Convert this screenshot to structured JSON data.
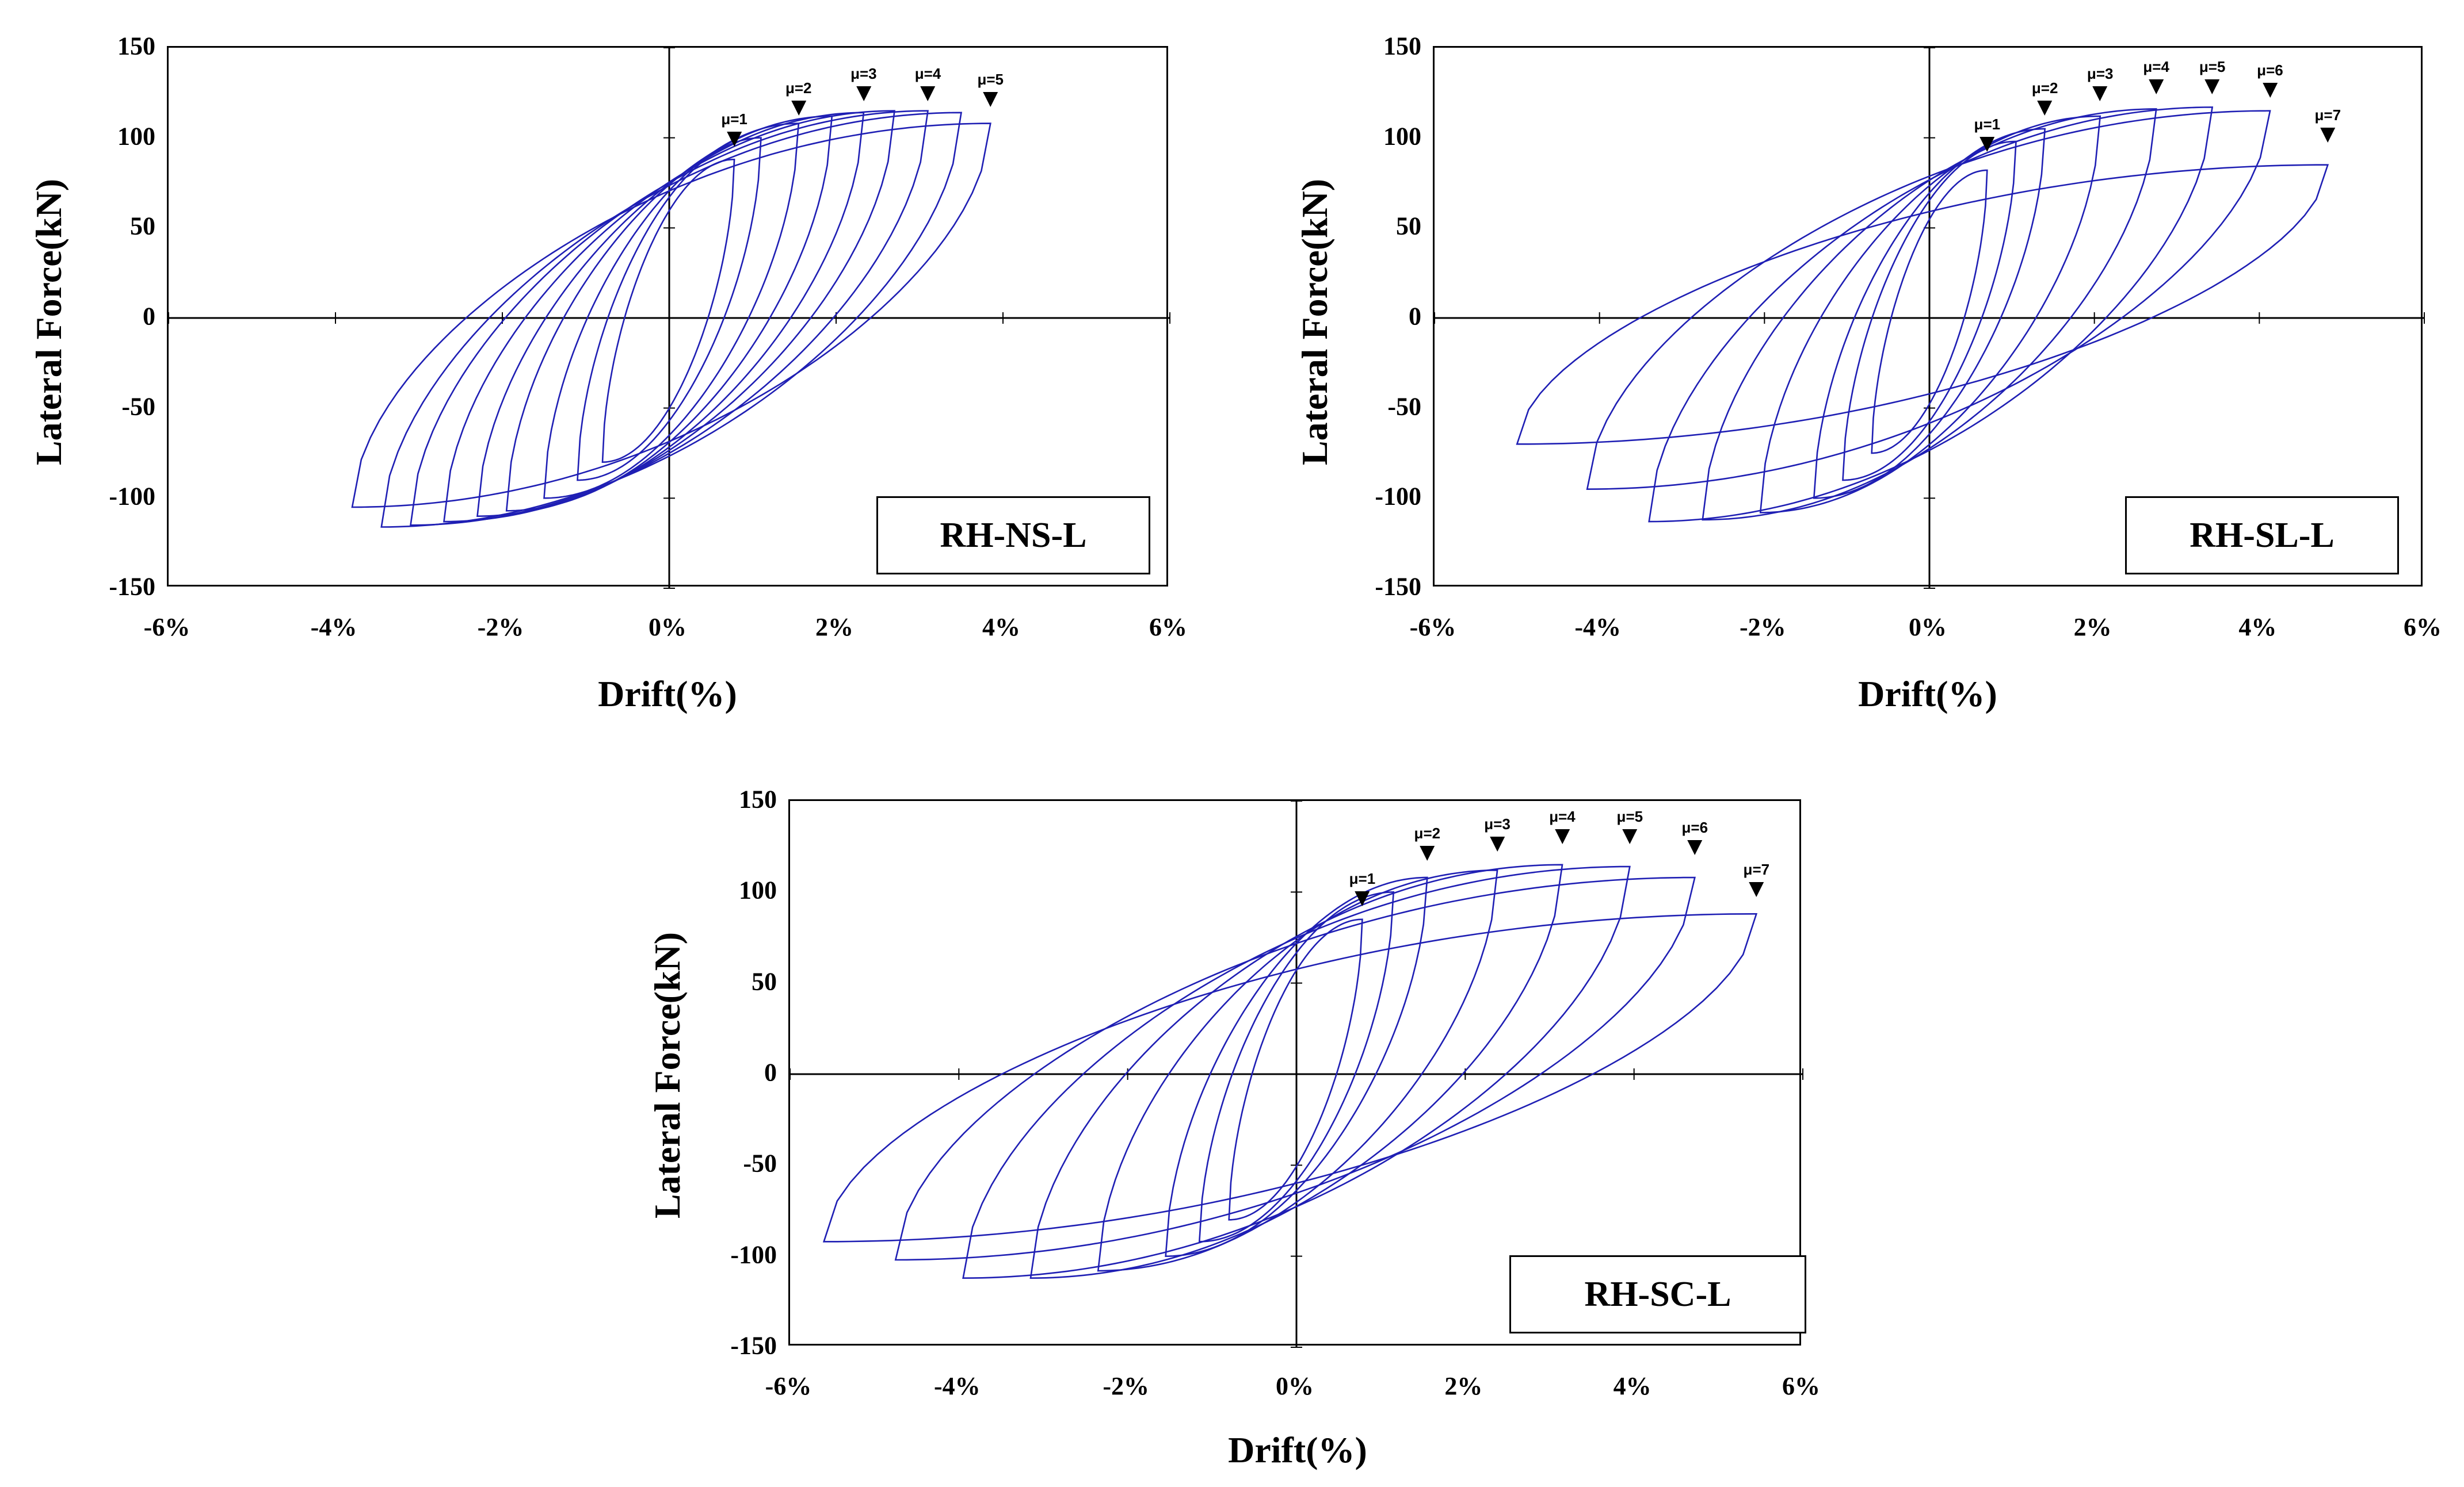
{
  "figure": {
    "line_color": "#1f1fb4"
  },
  "chart_data": [
    {
      "type": "line",
      "specimen": "RH-NS-L",
      "xlabel": "Drift(%)",
      "ylabel": "Lateral Force(kN)",
      "xlim": [
        -6,
        6
      ],
      "ylim": [
        -150,
        150
      ],
      "xticks": [
        "-6%",
        "-4%",
        "-2%",
        "0%",
        "2%",
        "4%",
        "6%"
      ],
      "yticks": [
        "150",
        "100",
        "50",
        "0",
        "-50",
        "-100",
        "-150"
      ],
      "ductility_markers": [
        {
          "label": "μ=1",
          "drift": 0.78,
          "force": 93
        },
        {
          "label": "μ=2",
          "drift": 1.55,
          "force": 110
        },
        {
          "label": "μ=3",
          "drift": 2.33,
          "force": 118
        },
        {
          "label": "μ=4",
          "drift": 3.1,
          "force": 118
        },
        {
          "label": "μ=5",
          "drift": 3.85,
          "force": 115
        }
      ],
      "series": [
        {
          "name": "cycle 1",
          "peak_pos": [
            0.78,
            88
          ],
          "peak_neg": [
            -0.8,
            -80
          ]
        },
        {
          "name": "cycle 2",
          "peak_pos": [
            1.1,
            100
          ],
          "peak_neg": [
            -1.1,
            -90
          ]
        },
        {
          "name": "cycle 3",
          "peak_pos": [
            1.55,
            108
          ],
          "peak_neg": [
            -1.5,
            -100
          ]
        },
        {
          "name": "cycle 4",
          "peak_pos": [
            1.95,
            112
          ],
          "peak_neg": [
            -1.95,
            -107
          ]
        },
        {
          "name": "cycle 5",
          "peak_pos": [
            2.33,
            114
          ],
          "peak_neg": [
            -2.3,
            -110
          ]
        },
        {
          "name": "cycle 6",
          "peak_pos": [
            2.7,
            115
          ],
          "peak_neg": [
            -2.7,
            -113
          ]
        },
        {
          "name": "cycle 7",
          "peak_pos": [
            3.1,
            115
          ],
          "peak_neg": [
            -3.1,
            -115
          ]
        },
        {
          "name": "cycle 8",
          "peak_pos": [
            3.5,
            114
          ],
          "peak_neg": [
            -3.45,
            -116
          ]
        },
        {
          "name": "cycle 9",
          "peak_pos": [
            3.85,
            108
          ],
          "peak_neg": [
            -3.8,
            -105
          ]
        }
      ]
    },
    {
      "type": "line",
      "specimen": "RH-SL-L",
      "xlabel": "Drift(%)",
      "ylabel": "Lateral Force(kN)",
      "xlim": [
        -6,
        6
      ],
      "ylim": [
        -150,
        150
      ],
      "xticks": [
        "-6%",
        "-4%",
        "-2%",
        "0%",
        "2%",
        "4%",
        "6%"
      ],
      "yticks": [
        "150",
        "100",
        "50",
        "0",
        "-50",
        "-100",
        "-150"
      ],
      "ductility_markers": [
        {
          "label": "μ=1",
          "drift": 0.7,
          "force": 90
        },
        {
          "label": "μ=2",
          "drift": 1.4,
          "force": 110
        },
        {
          "label": "μ=3",
          "drift": 2.07,
          "force": 118
        },
        {
          "label": "μ=4",
          "drift": 2.75,
          "force": 122
        },
        {
          "label": "μ=5",
          "drift": 3.43,
          "force": 122
        },
        {
          "label": "μ=6",
          "drift": 4.13,
          "force": 120
        },
        {
          "label": "μ=7",
          "drift": 4.83,
          "force": 95
        }
      ],
      "series": [
        {
          "name": "cycle 1",
          "peak_pos": [
            0.7,
            82
          ],
          "peak_neg": [
            -0.7,
            -75
          ]
        },
        {
          "name": "cycle 2",
          "peak_pos": [
            1.05,
            98
          ],
          "peak_neg": [
            -1.05,
            -90
          ]
        },
        {
          "name": "cycle 3",
          "peak_pos": [
            1.4,
            105
          ],
          "peak_neg": [
            -1.4,
            -100
          ]
        },
        {
          "name": "cycle 4",
          "peak_pos": [
            2.07,
            112
          ],
          "peak_neg": [
            -2.05,
            -108
          ]
        },
        {
          "name": "cycle 5",
          "peak_pos": [
            2.75,
            116
          ],
          "peak_neg": [
            -2.75,
            -112
          ]
        },
        {
          "name": "cycle 6",
          "peak_pos": [
            3.43,
            117
          ],
          "peak_neg": [
            -3.4,
            -113
          ]
        },
        {
          "name": "cycle 7",
          "peak_pos": [
            4.13,
            115
          ],
          "peak_neg": [
            -4.15,
            -95
          ]
        },
        {
          "name": "cycle 8",
          "peak_pos": [
            4.83,
            85
          ],
          "peak_neg": [
            -5.0,
            -70
          ]
        }
      ]
    },
    {
      "type": "line",
      "specimen": "RH-SC-L",
      "xlabel": "Drift(%)",
      "ylabel": "Lateral Force(kN)",
      "xlim": [
        -6,
        6
      ],
      "ylim": [
        -150,
        150
      ],
      "xticks": [
        "-6%",
        "-4%",
        "-2%",
        "0%",
        "2%",
        "4%",
        "6%"
      ],
      "yticks": [
        "150",
        "100",
        "50",
        "0",
        "-50",
        "-100",
        "-150"
      ],
      "ductility_markers": [
        {
          "label": "μ=1",
          "drift": 0.78,
          "force": 90
        },
        {
          "label": "μ=2",
          "drift": 1.55,
          "force": 115
        },
        {
          "label": "μ=3",
          "drift": 2.38,
          "force": 120
        },
        {
          "label": "μ=4",
          "drift": 3.15,
          "force": 124
        },
        {
          "label": "μ=5",
          "drift": 3.95,
          "force": 124
        },
        {
          "label": "μ=6",
          "drift": 4.72,
          "force": 118
        },
        {
          "label": "μ=7",
          "drift": 5.45,
          "force": 95
        }
      ],
      "series": [
        {
          "name": "cycle 1",
          "peak_pos": [
            0.78,
            85
          ],
          "peak_neg": [
            -0.8,
            -80
          ]
        },
        {
          "name": "cycle 2",
          "peak_pos": [
            1.15,
            100
          ],
          "peak_neg": [
            -1.15,
            -92
          ]
        },
        {
          "name": "cycle 3",
          "peak_pos": [
            1.55,
            108
          ],
          "peak_neg": [
            -1.55,
            -100
          ]
        },
        {
          "name": "cycle 4",
          "peak_pos": [
            2.38,
            112
          ],
          "peak_neg": [
            -2.35,
            -108
          ]
        },
        {
          "name": "cycle 5",
          "peak_pos": [
            3.15,
            115
          ],
          "peak_neg": [
            -3.15,
            -112
          ]
        },
        {
          "name": "cycle 6",
          "peak_pos": [
            3.95,
            114
          ],
          "peak_neg": [
            -3.95,
            -112
          ]
        },
        {
          "name": "cycle 7",
          "peak_pos": [
            4.72,
            108
          ],
          "peak_neg": [
            -4.75,
            -102
          ]
        },
        {
          "name": "cycle 8",
          "peak_pos": [
            5.45,
            88
          ],
          "peak_neg": [
            -5.6,
            -92
          ]
        }
      ]
    }
  ]
}
